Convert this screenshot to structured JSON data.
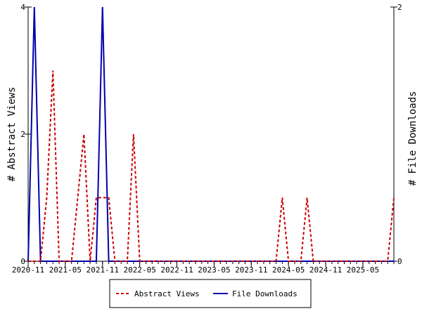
{
  "chart_data": {
    "type": "line",
    "x_axis": {
      "tick_labels": [
        "2020-11",
        "2021-05",
        "2021-11",
        "2022-05",
        "2022-11",
        "2023-05",
        "2023-11",
        "2024-05",
        "2024-11",
        "2025-05"
      ],
      "range": [
        "2020-11",
        "2025-10"
      ]
    },
    "y_left": {
      "label": "# Abstract Views",
      "range": [
        0,
        4
      ],
      "ticks": [
        "0",
        "2",
        "4"
      ]
    },
    "y_right": {
      "label": "# File Downloads",
      "range": [
        0,
        2
      ],
      "ticks": [
        "0",
        "2"
      ]
    },
    "legend_position": "bottom-center",
    "grid": false,
    "series": [
      {
        "name": "Abstract Views",
        "axis": "left",
        "color": "#cc0000",
        "style": "dashed",
        "points": [
          [
            "2020-11",
            0
          ],
          [
            "2020-12",
            0
          ],
          [
            "2021-01",
            0
          ],
          [
            "2021-02",
            1
          ],
          [
            "2021-03",
            3
          ],
          [
            "2021-04",
            0
          ],
          [
            "2021-05",
            0
          ],
          [
            "2021-06",
            0
          ],
          [
            "2021-07",
            1
          ],
          [
            "2021-08",
            2
          ],
          [
            "2021-09",
            0
          ],
          [
            "2021-10",
            1
          ],
          [
            "2021-11",
            1
          ],
          [
            "2021-12",
            1
          ],
          [
            "2022-01",
            0
          ],
          [
            "2022-02",
            0
          ],
          [
            "2022-03",
            0
          ],
          [
            "2022-04",
            2
          ],
          [
            "2022-05",
            0
          ],
          [
            "2022-06",
            0
          ],
          [
            "2022-07",
            0
          ],
          [
            "2022-08",
            0
          ],
          [
            "2022-09",
            0
          ],
          [
            "2022-10",
            0
          ],
          [
            "2022-11",
            0
          ],
          [
            "2022-12",
            0
          ],
          [
            "2023-01",
            0
          ],
          [
            "2023-02",
            0
          ],
          [
            "2023-03",
            0
          ],
          [
            "2023-04",
            0
          ],
          [
            "2023-05",
            0
          ],
          [
            "2023-06",
            0
          ],
          [
            "2023-07",
            0
          ],
          [
            "2023-08",
            0
          ],
          [
            "2023-09",
            0
          ],
          [
            "2023-10",
            0
          ],
          [
            "2023-11",
            0
          ],
          [
            "2023-12",
            0
          ],
          [
            "2024-01",
            0
          ],
          [
            "2024-02",
            0
          ],
          [
            "2024-03",
            0
          ],
          [
            "2024-04",
            1
          ],
          [
            "2024-05",
            0
          ],
          [
            "2024-06",
            0
          ],
          [
            "2024-07",
            0
          ],
          [
            "2024-08",
            1
          ],
          [
            "2024-09",
            0
          ],
          [
            "2024-10",
            0
          ],
          [
            "2024-11",
            0
          ],
          [
            "2024-12",
            0
          ],
          [
            "2025-01",
            0
          ],
          [
            "2025-02",
            0
          ],
          [
            "2025-03",
            0
          ],
          [
            "2025-04",
            0
          ],
          [
            "2025-05",
            0
          ],
          [
            "2025-06",
            0
          ],
          [
            "2025-07",
            0
          ],
          [
            "2025-08",
            0
          ],
          [
            "2025-09",
            0
          ],
          [
            "2025-10",
            1
          ]
        ]
      },
      {
        "name": "File Downloads",
        "axis": "right",
        "color": "#0000aa",
        "style": "solid",
        "points": [
          [
            "2020-11",
            0
          ],
          [
            "2020-12",
            2
          ],
          [
            "2021-01",
            0
          ],
          [
            "2021-02",
            0
          ],
          [
            "2021-03",
            0
          ],
          [
            "2021-04",
            0
          ],
          [
            "2021-05",
            0
          ],
          [
            "2021-06",
            0
          ],
          [
            "2021-07",
            0
          ],
          [
            "2021-08",
            0
          ],
          [
            "2021-09",
            0
          ],
          [
            "2021-10",
            0
          ],
          [
            "2021-11",
            2
          ],
          [
            "2021-12",
            0
          ],
          [
            "2022-01",
            0
          ],
          [
            "2022-02",
            0
          ],
          [
            "2022-03",
            0
          ],
          [
            "2022-04",
            0
          ],
          [
            "2022-05",
            0
          ],
          [
            "2022-06",
            0
          ],
          [
            "2022-07",
            0
          ],
          [
            "2022-08",
            0
          ],
          [
            "2022-09",
            0
          ],
          [
            "2022-10",
            0
          ],
          [
            "2022-11",
            0
          ],
          [
            "2022-12",
            0
          ],
          [
            "2023-01",
            0
          ],
          [
            "2023-02",
            0
          ],
          [
            "2023-03",
            0
          ],
          [
            "2023-04",
            0
          ],
          [
            "2023-05",
            0
          ],
          [
            "2023-06",
            0
          ],
          [
            "2023-07",
            0
          ],
          [
            "2023-08",
            0
          ],
          [
            "2023-09",
            0
          ],
          [
            "2023-10",
            0
          ],
          [
            "2023-11",
            0
          ],
          [
            "2023-12",
            0
          ],
          [
            "2024-01",
            0
          ],
          [
            "2024-02",
            0
          ],
          [
            "2024-03",
            0
          ],
          [
            "2024-04",
            0
          ],
          [
            "2024-05",
            0
          ],
          [
            "2024-06",
            0
          ],
          [
            "2024-07",
            0
          ],
          [
            "2024-08",
            0
          ],
          [
            "2024-09",
            0
          ],
          [
            "2024-10",
            0
          ],
          [
            "2024-11",
            0
          ],
          [
            "2024-12",
            0
          ],
          [
            "2025-01",
            0
          ],
          [
            "2025-02",
            0
          ],
          [
            "2025-03",
            0
          ],
          [
            "2025-04",
            0
          ],
          [
            "2025-05",
            0
          ],
          [
            "2025-06",
            0
          ],
          [
            "2025-07",
            0
          ],
          [
            "2025-08",
            0
          ],
          [
            "2025-09",
            0
          ],
          [
            "2025-10",
            0
          ]
        ]
      }
    ]
  }
}
